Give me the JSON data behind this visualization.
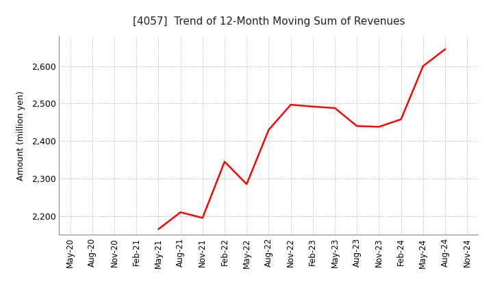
{
  "title": "[4057]  Trend of 12-Month Moving Sum of Revenues",
  "ylabel": "Amount (million yen)",
  "line_color": "#ff0000",
  "line_width": 1.8,
  "background_color": "#ffffff",
  "grid_color": "#999999",
  "ylim": [
    2150,
    2680
  ],
  "yticks": [
    2200,
    2300,
    2400,
    2500,
    2600
  ],
  "values": [
    null,
    null,
    null,
    null,
    2165,
    2210,
    2195,
    2345,
    2285,
    2430,
    2497,
    2492,
    2488,
    2440,
    2438,
    2458,
    2600,
    2645,
    null
  ],
  "xtick_labels": [
    "May-20",
    "Aug-20",
    "Nov-20",
    "Feb-21",
    "May-21",
    "Aug-21",
    "Nov-21",
    "Feb-22",
    "May-22",
    "Aug-22",
    "Nov-22",
    "Feb-23",
    "May-23",
    "Aug-23",
    "Nov-23",
    "Feb-24",
    "May-24",
    "Aug-24",
    "Nov-24"
  ]
}
